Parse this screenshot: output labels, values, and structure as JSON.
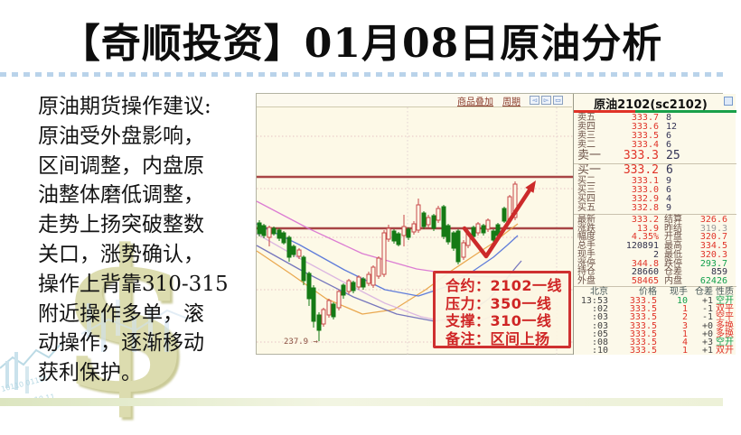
{
  "title": "【奇顺投资】01月08日原油分析",
  "advice": {
    "lines": [
      "原油期货操作建议:",
      "原油受外盘影响，",
      "区间调整，内盘原",
      "油整体磨低调整，",
      "走势上扬突破整数",
      "关口，涨势确认，",
      "操作上背靠310-315",
      "附近操作多单，滚",
      "动操作，逐渐移动",
      "获利保护。"
    ]
  },
  "chart_toolbar": {
    "overlay_link": "商品叠加",
    "period_link": "周期",
    "buttons": [
      {
        "icon": "◅"
      },
      {
        "icon": "▻"
      },
      {
        "icon": "▭"
      }
    ]
  },
  "quote_panel": {
    "title": "原油2102(sc2102)",
    "ratio_ask_pct": 38,
    "asks": [
      [
        "卖五",
        "333.7",
        "8"
      ],
      [
        "卖四",
        "333.6",
        "12"
      ],
      [
        "卖三",
        "333.5",
        "6"
      ],
      [
        "卖二",
        "333.4",
        "6"
      ],
      [
        "卖一",
        "333.3",
        "25"
      ]
    ],
    "bids": [
      [
        "买一",
        "333.2",
        "6"
      ],
      [
        "买二",
        "333.1",
        "9"
      ],
      [
        "买三",
        "333.0",
        "6"
      ],
      [
        "买四",
        "332.9",
        "4"
      ],
      [
        "买五",
        "332.8",
        "9"
      ]
    ],
    "stats": [
      {
        "l1": "最新",
        "v1": "333.2",
        "c1": "r",
        "l2": "结算",
        "v2": "326.6",
        "c2": "r"
      },
      {
        "l1": "涨跌",
        "v1": "13.9",
        "c1": "r",
        "l2": "昨结",
        "v2": "319.3",
        "c2": "mut"
      },
      {
        "l1": "幅度",
        "v1": "4.35%",
        "c1": "r",
        "l2": "开盘",
        "v2": "320.7",
        "c2": "r"
      },
      {
        "l1": "总手",
        "v1": "120891",
        "c1": "k",
        "l2": "最高",
        "v2": "334.5",
        "c2": "r"
      },
      {
        "l1": "现手",
        "v1": "2",
        "c1": "k",
        "l2": "最低",
        "v2": "320.3",
        "c2": "r"
      },
      {
        "l1": "涨停",
        "v1": "344.8",
        "c1": "r",
        "l2": "跌停",
        "v2": "293.7",
        "c2": "g"
      },
      {
        "l1": "持仓",
        "v1": "28660",
        "c1": "k",
        "l2": "仓差",
        "v2": "859",
        "c2": "k"
      },
      {
        "l1": "外盘",
        "v1": "58465",
        "c1": "r",
        "l2": "内盘",
        "v2": "62426",
        "c2": "g"
      }
    ],
    "tick_header": [
      "北京",
      "价格",
      "现手",
      "仓差",
      "性质"
    ],
    "ticks": [
      {
        "t": "13:53",
        "p": "333.5",
        "v": "10",
        "d": "+1",
        "f": "空开",
        "vc": "g",
        "fc": "g"
      },
      {
        "t": ":02",
        "p": "333.5",
        "v": "1",
        "d": "-1",
        "f": "双平",
        "vc": "r",
        "fc": "r"
      },
      {
        "t": ":03",
        "p": "333.5",
        "v": "2",
        "d": "-1",
        "f": "空平",
        "vc": "r",
        "fc": "r"
      },
      {
        "t": ":03",
        "p": "333.5",
        "v": "3",
        "d": "+0",
        "f": "多换",
        "vc": "r",
        "fc": "r"
      },
      {
        "t": ":05",
        "p": "333.5",
        "v": "1",
        "d": "+0",
        "f": "多换",
        "vc": "r",
        "fc": "r"
      },
      {
        "t": ":08",
        "p": "333.5",
        "v": "4",
        "d": "+3",
        "f": "空开",
        "vc": "r",
        "fc": "g"
      },
      {
        "t": ":10",
        "p": "333.5",
        "v": "1",
        "d": "+1",
        "f": "双开",
        "vc": "r",
        "fc": "r"
      }
    ]
  },
  "annotation": {
    "lines": [
      "合约：2102一线",
      "压力：350一线",
      "支撑：310一线",
      "备注：区间上扬"
    ]
  },
  "chart": {
    "low_label": "237.9 →",
    "levels_y": [
      195,
      252
    ],
    "grid_h": [
      150,
      208,
      262,
      320,
      378
    ],
    "grid_v": [
      450,
      615
    ],
    "candle_colors": {
      "up_hollow": "#c84848",
      "down_fill": "#157a15",
      "bg": "#fdf9e7"
    },
    "candles": [
      [
        286,
        0,
        246,
        258,
        243,
        261
      ],
      [
        291,
        0,
        249,
        260,
        247,
        263
      ],
      [
        297,
        1,
        251,
        262,
        249,
        272
      ],
      [
        302,
        0,
        252,
        258,
        250,
        260
      ],
      [
        308,
        0,
        254,
        263,
        252,
        266
      ],
      [
        313,
        0,
        257,
        268,
        255,
        270
      ],
      [
        319,
        0,
        262,
        284,
        260,
        289
      ],
      [
        324,
        0,
        272,
        281,
        270,
        284
      ],
      [
        330,
        1,
        276,
        283,
        274,
        286
      ],
      [
        335,
        0,
        284,
        310,
        282,
        315
      ],
      [
        341,
        0,
        302,
        330,
        300,
        338
      ],
      [
        346,
        0,
        318,
        355,
        315,
        362
      ],
      [
        352,
        0,
        348,
        365,
        345,
        377
      ],
      [
        357,
        1,
        342,
        358,
        340,
        361
      ],
      [
        363,
        1,
        332,
        348,
        330,
        351
      ],
      [
        368,
        0,
        336,
        350,
        334,
        353
      ],
      [
        374,
        1,
        322,
        340,
        320,
        343
      ],
      [
        379,
        0,
        315,
        326,
        313,
        330
      ],
      [
        385,
        1,
        310,
        322,
        308,
        325
      ],
      [
        390,
        0,
        312,
        321,
        310,
        324
      ],
      [
        396,
        1,
        306,
        317,
        304,
        320
      ],
      [
        401,
        0,
        308,
        317,
        306,
        320
      ],
      [
        407,
        1,
        303,
        313,
        300,
        316
      ],
      [
        412,
        1,
        295,
        315,
        293,
        318
      ],
      [
        418,
        1,
        285,
        305,
        283,
        308
      ],
      [
        424,
        1,
        257,
        303,
        254,
        306
      ],
      [
        429,
        1,
        252,
        264,
        248,
        267
      ],
      [
        435,
        0,
        255,
        266,
        253,
        269
      ],
      [
        440,
        0,
        258,
        270,
        256,
        272
      ],
      [
        446,
        1,
        250,
        260,
        237,
        272
      ],
      [
        451,
        0,
        253,
        262,
        251,
        265
      ],
      [
        457,
        1,
        247,
        256,
        244,
        259
      ],
      [
        462,
        1,
        226,
        254,
        219,
        257
      ],
      [
        468,
        0,
        235,
        250,
        233,
        253
      ],
      [
        473,
        1,
        240,
        248,
        237,
        251
      ],
      [
        479,
        0,
        238,
        252,
        236,
        255
      ],
      [
        484,
        1,
        230,
        243,
        227,
        246
      ],
      [
        490,
        0,
        228,
        261,
        226,
        264
      ],
      [
        495,
        0,
        249,
        267,
        247,
        270
      ],
      [
        501,
        0,
        257,
        274,
        255,
        277
      ],
      [
        506,
        0,
        255,
        289,
        253,
        292
      ],
      [
        512,
        1,
        268,
        284,
        265,
        287
      ],
      [
        517,
        1,
        257,
        271,
        254,
        274
      ],
      [
        523,
        0,
        251,
        261,
        249,
        264
      ],
      [
        528,
        1,
        247,
        257,
        245,
        260
      ],
      [
        534,
        0,
        249,
        257,
        247,
        260
      ],
      [
        539,
        1,
        243,
        253,
        241,
        256
      ],
      [
        545,
        0,
        255,
        265,
        253,
        268
      ],
      [
        550,
        0,
        248,
        260,
        246,
        263
      ],
      [
        557,
        0,
        230,
        244,
        228,
        246
      ],
      [
        563,
        1,
        217,
        243,
        215,
        245
      ],
      [
        569,
        1,
        203,
        240,
        200,
        243
      ]
    ],
    "ma_lines": [
      {
        "color": "#d86fd0",
        "points": [
          [
            283,
            222
          ],
          [
            340,
            252
          ],
          [
            400,
            280
          ],
          [
            460,
            297
          ],
          [
            515,
            305
          ],
          [
            555,
            306
          ],
          [
            575,
            305
          ]
        ]
      },
      {
        "color": "#e8a040",
        "points": [
          [
            283,
            277
          ],
          [
            320,
            302
          ],
          [
            360,
            330
          ],
          [
            400,
            347
          ],
          [
            435,
            342
          ],
          [
            470,
            320
          ],
          [
            500,
            298
          ],
          [
            527,
            280
          ],
          [
            545,
            268
          ],
          [
            560,
            256
          ],
          [
            572,
            247
          ]
        ]
      },
      {
        "color": "#4f6fd8",
        "points": [
          [
            283,
            247
          ],
          [
            330,
            270
          ],
          [
            380,
            298
          ],
          [
            425,
            320
          ],
          [
            462,
            327
          ],
          [
            495,
            316
          ],
          [
            523,
            299
          ],
          [
            545,
            284
          ],
          [
            560,
            271
          ],
          [
            572,
            260
          ]
        ]
      },
      {
        "color": "#6868b8",
        "points": [
          [
            283,
            271
          ],
          [
            335,
            300
          ],
          [
            390,
            328
          ],
          [
            438,
            347
          ],
          [
            480,
            355
          ],
          [
            515,
            348
          ],
          [
            540,
            330
          ],
          [
            558,
            310
          ],
          [
            570,
            295
          ],
          [
            576,
            288
          ]
        ]
      },
      {
        "color": "#d8b0e0",
        "points": [
          [
            283,
            258
          ],
          [
            330,
            285
          ],
          [
            380,
            312
          ],
          [
            425,
            335
          ],
          [
            465,
            350
          ],
          [
            500,
            357
          ],
          [
            530,
            355
          ],
          [
            552,
            345
          ],
          [
            566,
            332
          ],
          [
            576,
            322
          ]
        ]
      }
    ],
    "trend_arrow": {
      "color": "#cc2a2a",
      "points": [
        [
          513,
          252
        ],
        [
          537,
          283
        ],
        [
          592,
          199
        ]
      ]
    }
  },
  "colors": {
    "up": "#e03328",
    "down": "#13a04c",
    "neutral": "#30304a",
    "muted": "#999999",
    "level_line": "#a84545"
  }
}
